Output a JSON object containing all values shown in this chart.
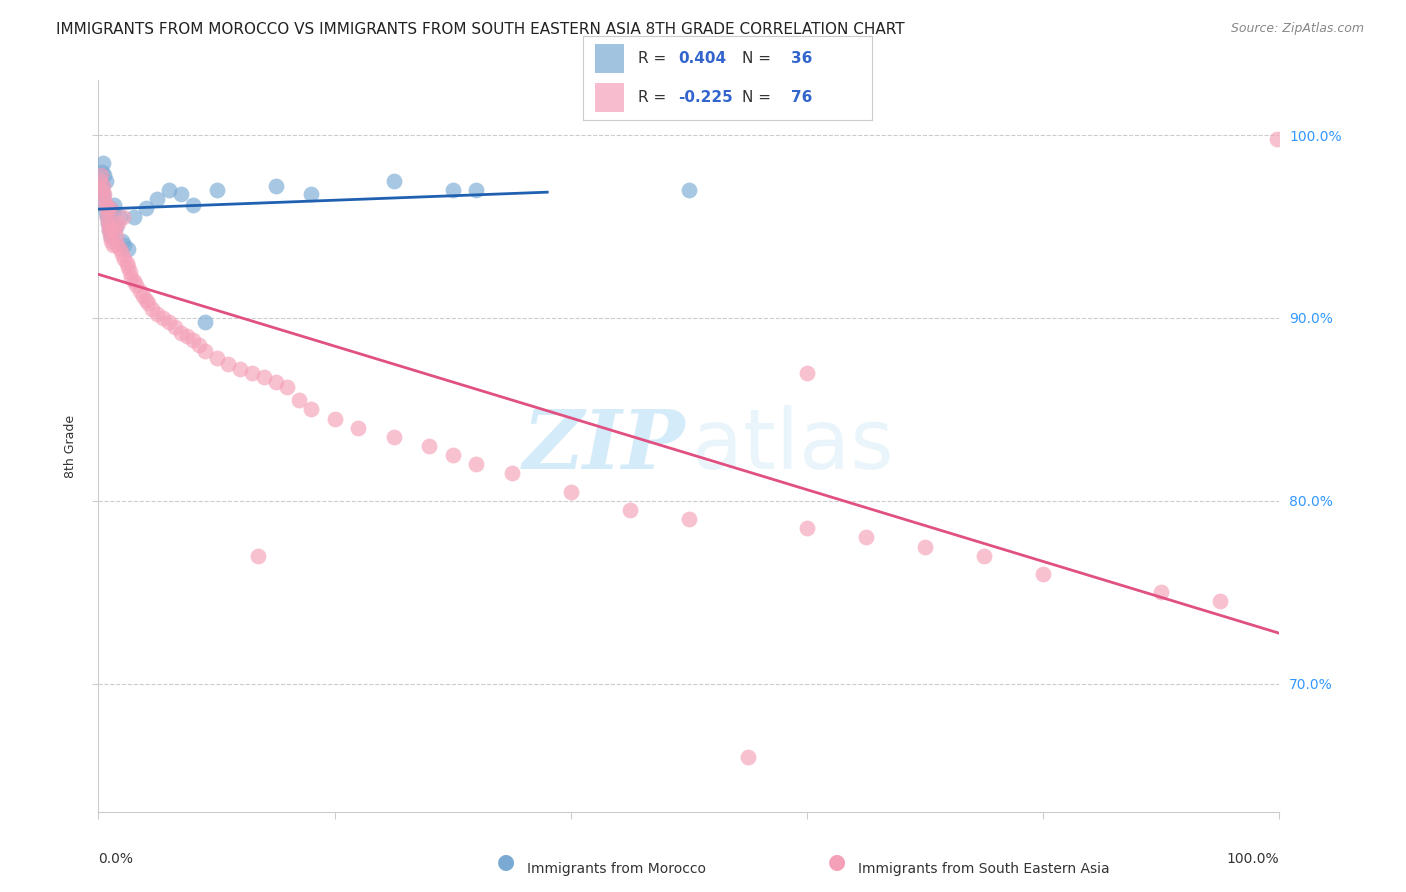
{
  "title": "IMMIGRANTS FROM MOROCCO VS IMMIGRANTS FROM SOUTH EASTERN ASIA 8TH GRADE CORRELATION CHART",
  "source": "Source: ZipAtlas.com",
  "ylabel": "8th Grade",
  "morocco_color": "#7aaad4",
  "sea_color": "#f4a0b8",
  "trend_morocco_color": "#2060b0",
  "trend_sea_color": "#e05080",
  "background_color": "#ffffff",
  "xlim": [
    0.0,
    1.0
  ],
  "ylim": [
    0.63,
    1.03
  ],
  "ytick_positions": [
    0.7,
    0.8,
    0.9,
    1.0
  ],
  "grid_color": "#cccccc",
  "morocco_x": [
    0.001,
    0.002,
    0.003,
    0.003,
    0.004,
    0.004,
    0.005,
    0.005,
    0.006,
    0.006,
    0.007,
    0.008,
    0.009,
    0.01,
    0.011,
    0.012,
    0.013,
    0.015,
    0.018,
    0.02,
    0.022,
    0.025,
    0.03,
    0.04,
    0.05,
    0.06,
    0.07,
    0.08,
    0.09,
    0.1,
    0.15,
    0.18,
    0.25,
    0.3,
    0.32,
    0.5
  ],
  "morocco_y": [
    0.97,
    0.975,
    0.98,
    0.972,
    0.968,
    0.985,
    0.963,
    0.978,
    0.958,
    0.975,
    0.955,
    0.952,
    0.948,
    0.96,
    0.945,
    0.958,
    0.962,
    0.95,
    0.955,
    0.942,
    0.94,
    0.938,
    0.955,
    0.96,
    0.965,
    0.97,
    0.968,
    0.962,
    0.898,
    0.97,
    0.972,
    0.968,
    0.975,
    0.97,
    0.97,
    0.97
  ],
  "sea_x": [
    0.001,
    0.002,
    0.003,
    0.004,
    0.005,
    0.005,
    0.006,
    0.007,
    0.007,
    0.008,
    0.008,
    0.009,
    0.009,
    0.01,
    0.01,
    0.011,
    0.012,
    0.013,
    0.014,
    0.015,
    0.016,
    0.017,
    0.018,
    0.02,
    0.021,
    0.022,
    0.024,
    0.025,
    0.027,
    0.028,
    0.03,
    0.032,
    0.035,
    0.038,
    0.04,
    0.042,
    0.045,
    0.05,
    0.055,
    0.06,
    0.065,
    0.07,
    0.075,
    0.08,
    0.085,
    0.09,
    0.1,
    0.11,
    0.12,
    0.13,
    0.14,
    0.15,
    0.16,
    0.17,
    0.18,
    0.2,
    0.22,
    0.25,
    0.28,
    0.3,
    0.32,
    0.35,
    0.4,
    0.45,
    0.5,
    0.6,
    0.65,
    0.7,
    0.75,
    0.8,
    0.9,
    0.95,
    0.998,
    0.135,
    0.6,
    0.55
  ],
  "sea_y": [
    0.975,
    0.978,
    0.97,
    0.972,
    0.968,
    0.965,
    0.962,
    0.96,
    0.955,
    0.958,
    0.952,
    0.95,
    0.948,
    0.945,
    0.96,
    0.942,
    0.94,
    0.948,
    0.95,
    0.945,
    0.94,
    0.952,
    0.938,
    0.935,
    0.955,
    0.932,
    0.93,
    0.928,
    0.925,
    0.922,
    0.92,
    0.918,
    0.915,
    0.912,
    0.91,
    0.908,
    0.905,
    0.902,
    0.9,
    0.898,
    0.895,
    0.892,
    0.89,
    0.888,
    0.885,
    0.882,
    0.878,
    0.875,
    0.872,
    0.87,
    0.868,
    0.865,
    0.862,
    0.855,
    0.85,
    0.845,
    0.84,
    0.835,
    0.83,
    0.825,
    0.82,
    0.815,
    0.805,
    0.795,
    0.79,
    0.785,
    0.78,
    0.775,
    0.77,
    0.76,
    0.75,
    0.745,
    0.998,
    0.77,
    0.87,
    0.66
  ]
}
